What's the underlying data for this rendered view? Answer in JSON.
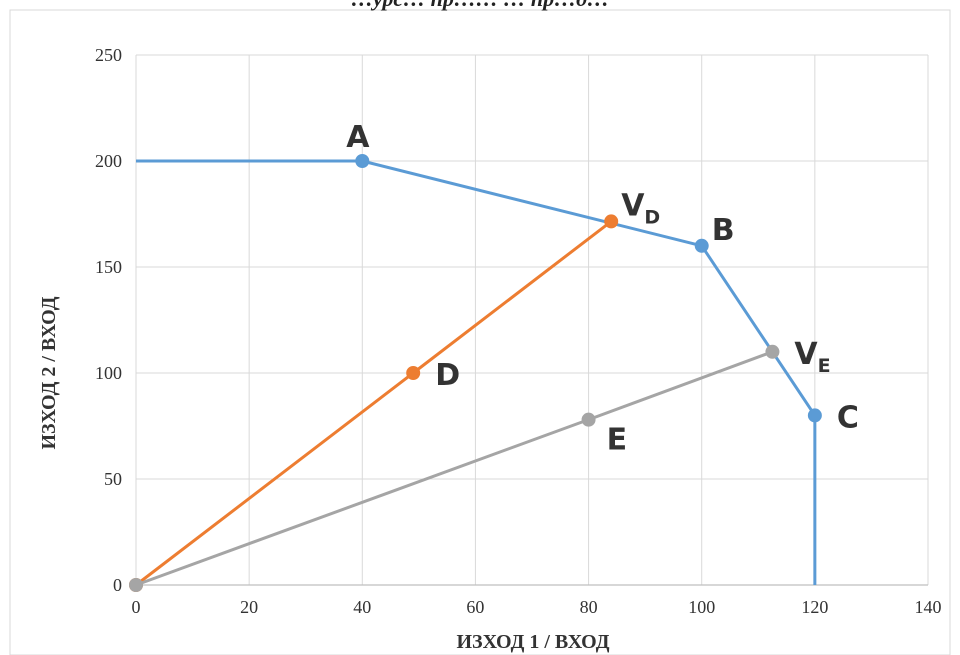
{
  "chart_data": {
    "type": "line",
    "title": "…урс… пр…… … пр…д…",
    "xlabel": "ИЗХОД 1 / ВХОД",
    "ylabel": "ИЗХОД 2 / ВХОД",
    "xlim": [
      0,
      140
    ],
    "ylim": [
      0,
      250
    ],
    "x_ticks": [
      0,
      20,
      40,
      60,
      80,
      100,
      120,
      140
    ],
    "y_ticks": [
      0,
      50,
      100,
      150,
      200,
      250
    ],
    "grid": true,
    "colors": {
      "frontier": "#5b9bd5",
      "ray_d": "#ed7d31",
      "ray_e": "#a5a5a5",
      "grid": "#d9d9d9",
      "plot_border": "#bfbfbf"
    },
    "series": [
      {
        "key": "frontier",
        "x": [
          0,
          40,
          100,
          120,
          120
        ],
        "y": [
          200,
          200,
          160,
          80,
          0
        ],
        "markers": [
          1,
          2,
          3
        ]
      },
      {
        "key": "ray_d",
        "x": [
          0,
          49,
          84
        ],
        "y": [
          0,
          100,
          171.5
        ],
        "markers": [
          0,
          1,
          2
        ]
      },
      {
        "key": "ray_e",
        "x": [
          0,
          80,
          112.5
        ],
        "y": [
          0,
          78,
          110
        ],
        "markers": [
          0,
          1,
          2
        ]
      }
    ],
    "point_labels": [
      {
        "text": "A",
        "sub": "",
        "x": 40,
        "y": 200,
        "pos": "above-left"
      },
      {
        "text": "B",
        "sub": "",
        "x": 100,
        "y": 160,
        "pos": "right-above"
      },
      {
        "text": "C",
        "sub": "",
        "x": 120,
        "y": 80,
        "pos": "right"
      },
      {
        "text": "D",
        "sub": "",
        "x": 49,
        "y": 100,
        "pos": "right"
      },
      {
        "text": "E",
        "sub": "",
        "x": 80,
        "y": 78,
        "pos": "right-below"
      },
      {
        "text": "V",
        "sub": "D",
        "x": 84,
        "y": 171.5,
        "pos": "right-above"
      },
      {
        "text": "V",
        "sub": "E",
        "x": 112.5,
        "y": 110,
        "pos": "right"
      }
    ]
  }
}
